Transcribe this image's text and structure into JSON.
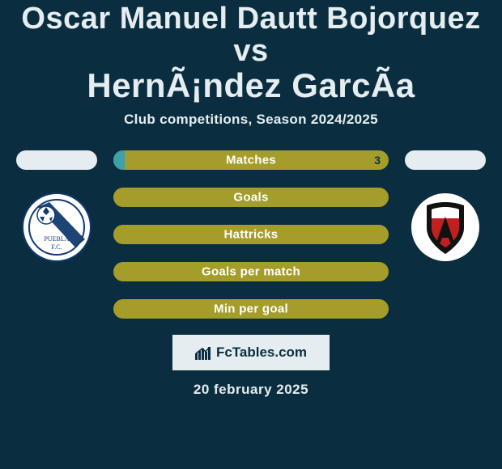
{
  "title_line1": "Oscar Manuel Dautt Bojorquez vs",
  "title_line2": "HernÃ¡ndez GarcÃ­a",
  "subtitle": "Club competitions, Season 2024/2025",
  "date": "20 february 2025",
  "brand": "FcTables.com",
  "colors": {
    "background": "#0a2e40",
    "text": "#e6edf0",
    "bar_bg": "#a59d2a",
    "bar_fill": "#3ea0a8",
    "bar_text": "#ffffff",
    "bar_val_text": "#10323f",
    "flag_bg": "#e6edf0",
    "brand_bg": "#e6edf0",
    "brand_text": "#0a2e40"
  },
  "bars": [
    {
      "label": "Matches",
      "left": "",
      "right": "3",
      "fill_pct": 4
    },
    {
      "label": "Goals",
      "left": "",
      "right": "",
      "fill_pct": 0
    },
    {
      "label": "Hattricks",
      "left": "",
      "right": "",
      "fill_pct": 0
    },
    {
      "label": "Goals per match",
      "left": "",
      "right": "",
      "fill_pct": 0
    },
    {
      "label": "Min per goal",
      "left": "",
      "right": "",
      "fill_pct": 0
    }
  ],
  "left_team": {
    "flag_color": "#e6edf0",
    "logo_bg": "#ffffff",
    "logo_stroke": "#103a6e",
    "logo_text1": "PUEBLA",
    "logo_text2": "F.C."
  },
  "right_team": {
    "flag_color": "#e6edf0",
    "logo_bg": "#ffffff",
    "logo_shield_outer": "#111111",
    "logo_shield_inner": "#c22020"
  }
}
